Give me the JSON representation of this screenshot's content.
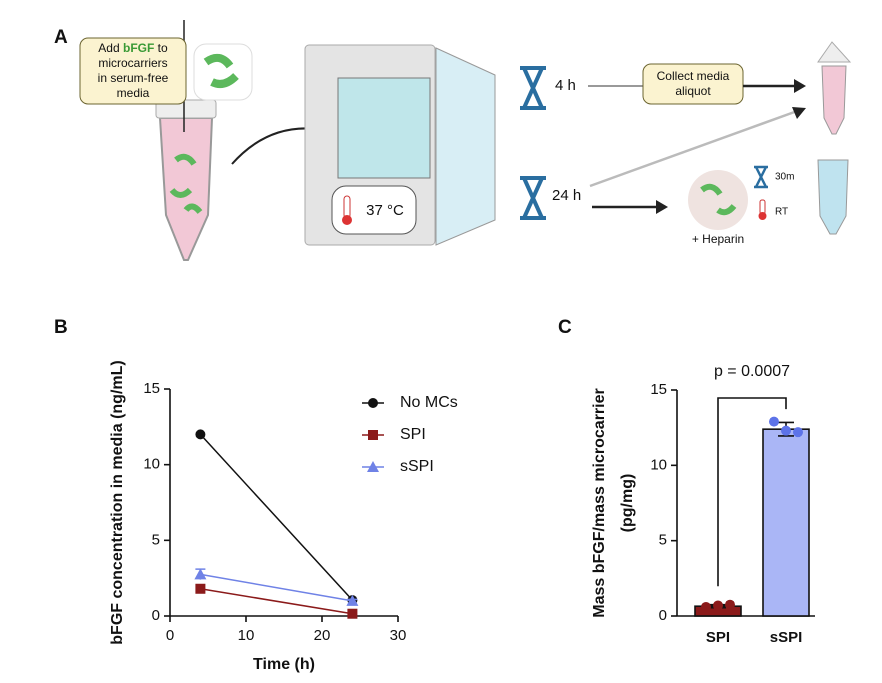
{
  "diagram": {
    "panel_label": "A",
    "add_first": [
      "Add",
      "bFGF",
      "to"
    ],
    "add_lines": [
      "microcarriers",
      "in serum-free",
      "media"
    ],
    "temperature": "37 °C",
    "time_short": "4 h",
    "time_long": "24 h",
    "collect_lines": [
      "Collect media",
      "aliquot"
    ],
    "heparin": "+ Heparin",
    "heparin_time": "30m",
    "heparin_temp": "RT"
  },
  "chart_data": [
    {
      "type": "line",
      "panel_label": "B",
      "xlabel": "Time (h)",
      "ylabel": "bFGF concentration in media (ng/mL)",
      "x": [
        4,
        24
      ],
      "xlim": [
        0,
        30
      ],
      "xticks": [
        0,
        10,
        20,
        30
      ],
      "ylim": [
        0,
        15
      ],
      "yticks": [
        0,
        5,
        10,
        15
      ],
      "series": [
        {
          "name": "No MCs",
          "color": "#111111",
          "marker": "circle",
          "values": [
            12.0,
            1.05
          ]
        },
        {
          "name": "SPI",
          "color": "#8b1a1a",
          "marker": "square",
          "values": [
            1.8,
            0.15
          ]
        },
        {
          "name": "sSPI",
          "color": "#6f82e6",
          "marker": "triangle",
          "values": [
            2.75,
            1.0
          ],
          "errors": [
            0.35,
            0.1
          ]
        }
      ]
    },
    {
      "type": "bar",
      "panel_label": "C",
      "ylabel": [
        "Mass bFGF/mass microcarrier",
        "(pg/mg)"
      ],
      "categories": [
        "SPI",
        "sSPI"
      ],
      "values": [
        0.65,
        12.4
      ],
      "errors": [
        0.1,
        0.45
      ],
      "colors": [
        "#8b1a1a",
        "#aab6f6"
      ],
      "point_colors": [
        "#8b1a1a",
        "#5d73e8"
      ],
      "points": [
        [
          0.6,
          0.7,
          0.75
        ],
        [
          12.9,
          12.3,
          12.2
        ]
      ],
      "ylim": [
        0,
        15
      ],
      "yticks": [
        0,
        5,
        10,
        15
      ],
      "annotation": "p = 0.0007"
    }
  ]
}
